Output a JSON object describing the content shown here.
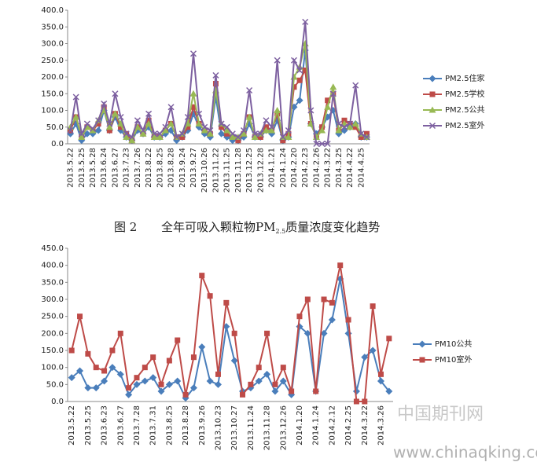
{
  "chart_data": [
    {
      "type": "line",
      "categories": [
        "2013.5.22",
        null,
        "2013.5.25",
        null,
        "2013.5.28",
        null,
        "2013.6.24",
        null,
        "2013.6.27",
        null,
        "2013.7.23",
        null,
        "2013.7.26",
        null,
        "2013.8.22",
        null,
        "2013.8.25",
        null,
        "2013.8.28",
        null,
        "2013.9.24",
        null,
        "2013.9.27",
        null,
        "2013.10.26",
        null,
        "2013.11.22",
        null,
        "2013.11.25",
        null,
        "2013.11.28",
        null,
        "2013.12.25",
        null,
        "2013.12.28",
        null,
        "2014.1.21",
        null,
        "2014.1.24",
        null,
        "2014.2.20",
        null,
        "2014.2.23",
        null,
        "2014.2.26",
        null,
        "2014.3.22",
        null,
        "2014.3.25",
        null,
        "2014.4.22",
        null,
        "2014.4.25",
        null
      ],
      "series": [
        {
          "name": "PM2.5住家",
          "color": "#4a7ebb",
          "marker": "diamond",
          "values": [
            30,
            60,
            10,
            30,
            30,
            40,
            100,
            40,
            80,
            40,
            20,
            10,
            40,
            30,
            50,
            20,
            20,
            30,
            40,
            10,
            20,
            40,
            90,
            50,
            30,
            20,
            140,
            30,
            20,
            10,
            10,
            20,
            60,
            20,
            20,
            40,
            30,
            70,
            10,
            20,
            110,
            130,
            280,
            60,
            30,
            50,
            80,
            100,
            30,
            40,
            50,
            60,
            20,
            20
          ]
        },
        {
          "name": "PM2.5学校",
          "color": "#be4b48",
          "marker": "square",
          "values": [
            40,
            80,
            20,
            50,
            40,
            60,
            110,
            40,
            90,
            50,
            30,
            10,
            50,
            30,
            70,
            20,
            20,
            40,
            60,
            20,
            20,
            50,
            110,
            60,
            40,
            30,
            180,
            50,
            30,
            20,
            10,
            30,
            80,
            20,
            20,
            50,
            40,
            90,
            10,
            30,
            170,
            190,
            220,
            60,
            20,
            50,
            130,
            150,
            40,
            70,
            60,
            50,
            20,
            30
          ]
        },
        {
          "name": "PM2.5公共",
          "color": "#98b954",
          "marker": "triangle",
          "values": [
            50,
            80,
            20,
            50,
            40,
            70,
            100,
            50,
            90,
            60,
            20,
            10,
            50,
            30,
            60,
            20,
            20,
            40,
            60,
            20,
            30,
            60,
            150,
            60,
            40,
            30,
            160,
            60,
            40,
            20,
            20,
            30,
            80,
            20,
            30,
            40,
            40,
            100,
            20,
            20,
            200,
            230,
            300,
            60,
            20,
            40,
            110,
            170,
            40,
            60,
            50,
            60,
            30,
            20
          ]
        },
        {
          "name": "PM2.5室外",
          "color": "#7d60a0",
          "marker": "x",
          "values": [
            40,
            140,
            30,
            60,
            45,
            70,
            120,
            60,
            150,
            80,
            30,
            20,
            70,
            40,
            90,
            30,
            30,
            50,
            110,
            20,
            30,
            80,
            270,
            90,
            50,
            40,
            205,
            60,
            50,
            30,
            20,
            40,
            160,
            30,
            30,
            70,
            50,
            250,
            20,
            40,
            250,
            220,
            365,
            100,
            0,
            0,
            0,
            150,
            60,
            50,
            60,
            175,
            30,
            20
          ]
        }
      ],
      "ylim": [
        0,
        400
      ],
      "yticks": [
        {
          "value": 0,
          "label": "0.0"
        },
        {
          "value": 50,
          "label": "50.0"
        },
        {
          "value": 100,
          "label": "100.0"
        },
        {
          "value": 150,
          "label": "150.0"
        },
        {
          "value": 200,
          "label": "200.0"
        },
        {
          "value": 250,
          "label": "250.0"
        },
        {
          "value": 300,
          "label": "300.0"
        },
        {
          "value": 350,
          "label": "350.0"
        },
        {
          "value": 400,
          "label": "400.0"
        }
      ],
      "grid": false,
      "legend": "right"
    },
    {
      "type": "line",
      "categories": [
        "2013.5.22",
        null,
        "2013.5.25",
        null,
        "2013.6.23",
        null,
        "2013.6.27",
        null,
        "2013.7.28",
        null,
        "2013.7.31",
        null,
        "2013.8.25",
        null,
        "2013.8.28",
        null,
        "2013.9.26",
        null,
        "2013.10.23",
        null,
        "2013.10.27",
        null,
        "2013.11.24",
        null,
        "2013.11.28",
        null,
        "2013.12.26",
        null,
        "2014.1.20",
        null,
        "2014.1.24",
        null,
        "2014.2.12",
        null,
        "2014.2.25",
        null,
        "2014.3.22",
        null,
        "2014.3.26",
        null
      ],
      "series": [
        {
          "name": "PM10公共",
          "color": "#4a7ebb",
          "marker": "diamond",
          "values": [
            70,
            90,
            40,
            40,
            60,
            100,
            80,
            20,
            50,
            60,
            70,
            30,
            50,
            60,
            10,
            40,
            160,
            60,
            50,
            220,
            120,
            30,
            40,
            60,
            80,
            30,
            60,
            20,
            220,
            200,
            30,
            200,
            240,
            360,
            200,
            30,
            130,
            150,
            60,
            30
          ]
        },
        {
          "name": "PM10室外",
          "color": "#be4b48",
          "marker": "square",
          "values": [
            150,
            250,
            140,
            100,
            90,
            150,
            200,
            40,
            70,
            100,
            130,
            50,
            120,
            180,
            20,
            130,
            370,
            310,
            80,
            290,
            200,
            20,
            50,
            100,
            200,
            50,
            100,
            30,
            250,
            300,
            30,
            300,
            290,
            400,
            240,
            0,
            0,
            280,
            80,
            185
          ]
        }
      ],
      "ylim": [
        0,
        450
      ],
      "yticks": [
        {
          "value": 0,
          "label": "0.0"
        },
        {
          "value": 50,
          "label": "50.0"
        },
        {
          "value": 100,
          "label": "100.0"
        },
        {
          "value": 150,
          "label": "150.0"
        },
        {
          "value": 200,
          "label": "200.0"
        },
        {
          "value": 250,
          "label": "250.0"
        },
        {
          "value": 300,
          "label": "300.0"
        },
        {
          "value": 350,
          "label": "350.0"
        },
        {
          "value": 400,
          "label": "400.0"
        },
        {
          "value": 450,
          "label": "450.0"
        }
      ],
      "grid": false,
      "legend": "right"
    }
  ],
  "figure_caption": {
    "label": "图 2",
    "text_before": "全年可吸入颗粒物PM",
    "subscript": "2.5",
    "text_after": "质量浓度变化趋势"
  },
  "watermark": {
    "name": "中国期刊网",
    "url": "www.chinaqking.com"
  }
}
